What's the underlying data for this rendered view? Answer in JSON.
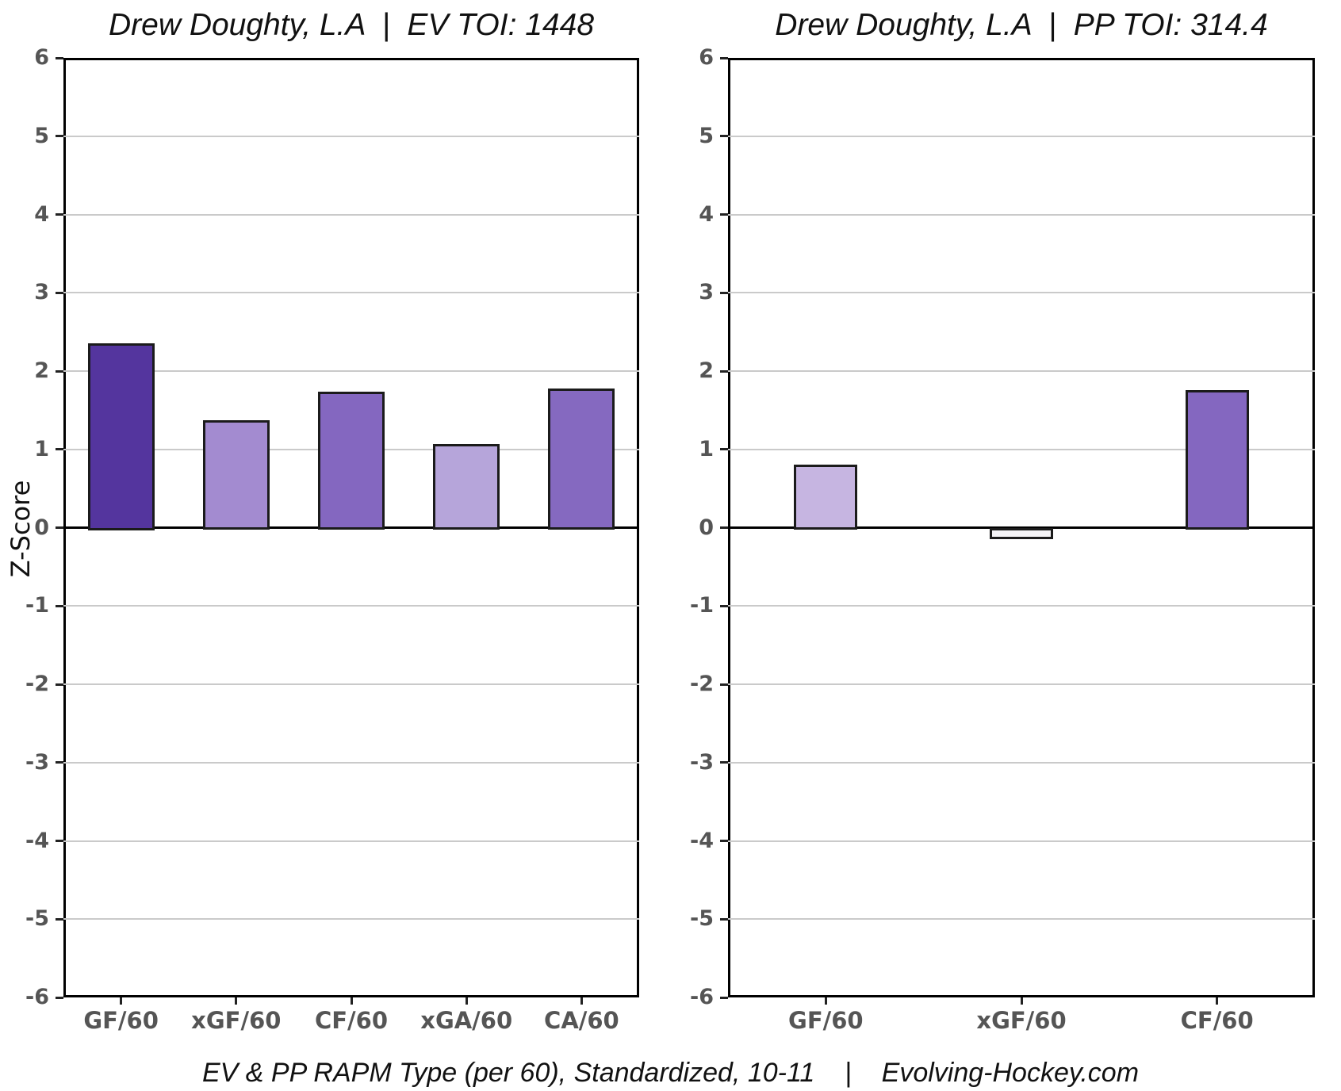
{
  "figure": {
    "background": "#ffffff",
    "footer_text": "EV & PP RAPM Type (per 60), Standardized, 10-11    |    Evolving-Hockey.com"
  },
  "colors": {
    "grid": "#cacaca",
    "zero_line": "#000000",
    "axis_border": "#000000",
    "tick_mark": "#222222",
    "tick_label": "#555555",
    "bar_border": "#1b1b1b"
  },
  "chart_data": [
    {
      "type": "bar",
      "title": "Drew Doughty, L.A  |  EV TOI: 1448",
      "ylabel": "Z-Score",
      "ylim": [
        -6,
        6
      ],
      "y_ticks": [
        6,
        5,
        4,
        3,
        2,
        1,
        0,
        -1,
        -2,
        -3,
        -4,
        -5,
        -6
      ],
      "grid": true,
      "legend": "none",
      "categories": [
        "GF/60",
        "xGF/60",
        "CF/60",
        "xGA/60",
        "CA/60"
      ],
      "values": [
        2.35,
        1.37,
        1.74,
        1.07,
        1.78
      ],
      "bar_colors": [
        "#54359e",
        "#a38bd0",
        "#8467c0",
        "#b6a5da",
        "#8569c0"
      ]
    },
    {
      "type": "bar",
      "title": "Drew Doughty, L.A  |  PP TOI: 314.4",
      "ylabel": "",
      "ylim": [
        -6,
        6
      ],
      "y_ticks": [
        6,
        5,
        4,
        3,
        2,
        1,
        0,
        -1,
        -2,
        -3,
        -4,
        -5,
        -6
      ],
      "grid": true,
      "legend": "none",
      "categories": [
        "GF/60",
        "xGF/60",
        "CF/60"
      ],
      "values": [
        0.81,
        -0.12,
        1.76
      ],
      "bar_colors": [
        "#c6b5e1",
        "#f4f3f6",
        "#8467c0"
      ]
    }
  ]
}
